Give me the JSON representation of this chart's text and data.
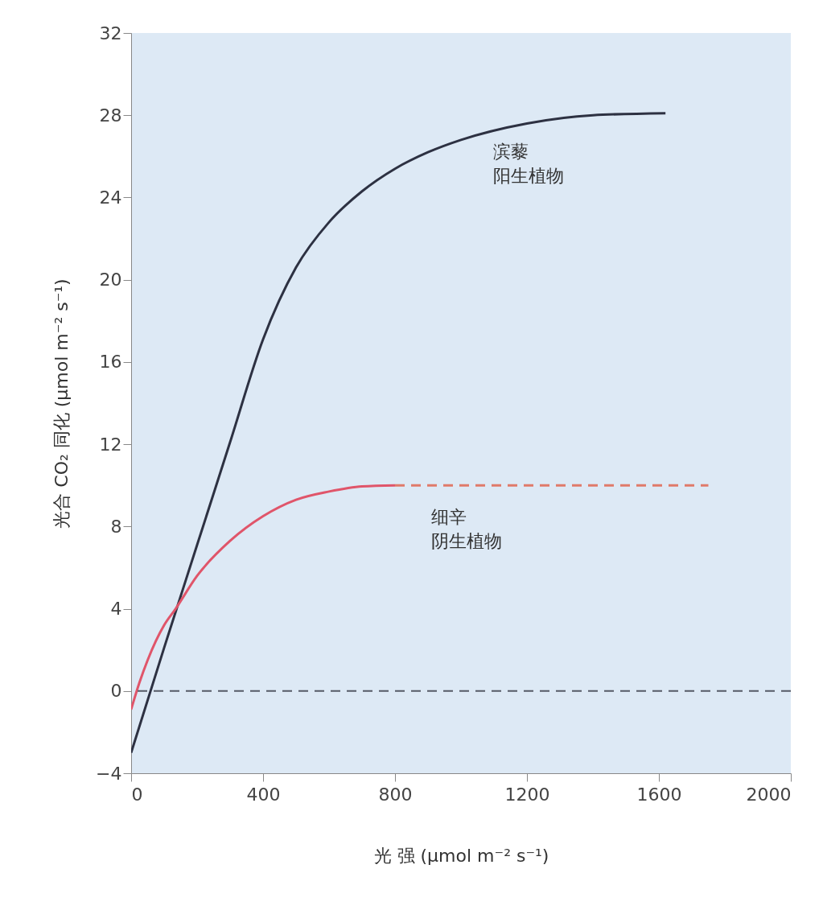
{
  "chart_data": {
    "type": "line",
    "xlabel": "光 强 (μmol m⁻² s⁻¹)",
    "ylabel": "光合 CO₂ 同化 (μmol m⁻² s⁻¹)",
    "xlim": [
      0,
      2000
    ],
    "ylim": [
      -4,
      32
    ],
    "xticks": [
      0,
      400,
      800,
      1200,
      1600,
      2000
    ],
    "yticks": [
      -4,
      0,
      4,
      8,
      12,
      16,
      20,
      24,
      28,
      32
    ],
    "series": [
      {
        "name": "滨藜阳生植物",
        "color": "#2d3142",
        "line_style": "solid",
        "x": [
          0,
          100,
          200,
          300,
          400,
          500,
          600,
          700,
          800,
          900,
          1000,
          1200,
          1400,
          1620
        ],
        "values": [
          -3,
          2.1,
          7.1,
          12.1,
          17.1,
          20.6,
          22.8,
          24.3,
          25.4,
          26.2,
          26.8,
          27.6,
          28,
          28.1
        ]
      },
      {
        "name": "细辛阴生植物",
        "color": "#e0556a",
        "line_style": "solid",
        "x": [
          0,
          25,
          50,
          100,
          135,
          200,
          300,
          400,
          500,
          600,
          700,
          800
        ],
        "values": [
          -0.9,
          0.4,
          1.5,
          3.2,
          4,
          5.6,
          7.3,
          8.5,
          9.3,
          9.7,
          9.95,
          10
        ]
      },
      {
        "color": "#e07a6a",
        "line_style": "dashed",
        "x": [
          800,
          1750
        ],
        "values": [
          10,
          10
        ]
      }
    ],
    "ref_lines": [
      {
        "axis": "y",
        "value": 0,
        "color": "#555a66",
        "line_style": "dashed"
      }
    ]
  }
}
